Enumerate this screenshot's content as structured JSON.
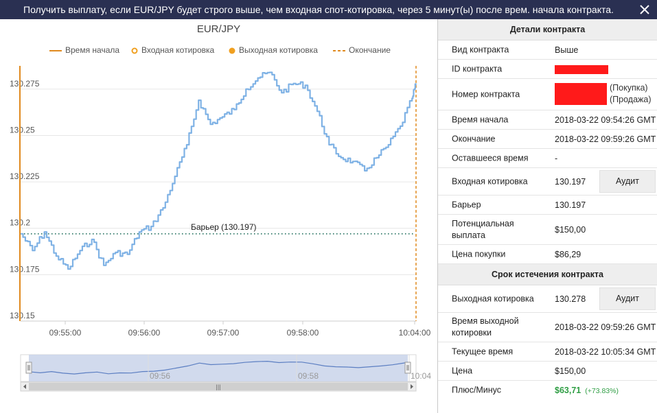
{
  "banner": {
    "text": "Получить выплату, если EUR/JPY будет строго выше, чем входная спот-котировка, через 5 минут(ы) после врем. начала контракта.",
    "close_icon": "close-icon"
  },
  "chart": {
    "title": "EUR/JPY",
    "legend": [
      "Время начала",
      "Входная котировка",
      "Выходная котировка",
      "Окончание"
    ],
    "barrier_label": "Барьер (130.197)",
    "colors": {
      "line": "#7fb2e5",
      "start": "#e08a1e",
      "end": "#e08a1e",
      "barrier": "#1f6e5c",
      "entry": "#f0a020"
    },
    "navigator_labels": [
      "09:56",
      "09:58",
      "10:04"
    ]
  },
  "chart_data": {
    "type": "line",
    "title": "EUR/JPY",
    "x_ticks": [
      "09:55:00",
      "09:56:00",
      "09:57:00",
      "09:58:00",
      "10:04:00"
    ],
    "y_ticks": [
      "130.15",
      "130.175",
      "130.2",
      "130.225",
      "130.25",
      "130.275"
    ],
    "ylim": [
      130.15,
      130.2875
    ],
    "grid": true,
    "legend_position": "top",
    "barrier": 130.197,
    "series": [
      {
        "x": [
          "09:54:26",
          "09:54:35",
          "09:54:44",
          "09:54:53",
          "09:55:02",
          "09:55:11",
          "09:55:20",
          "09:55:29",
          "09:55:38",
          "09:55:47",
          "09:55:56",
          "09:56:05",
          "09:56:14",
          "09:56:23",
          "09:56:32",
          "09:56:41",
          "09:56:50",
          "09:56:59",
          "09:57:08",
          "09:57:17",
          "09:57:26",
          "09:57:35",
          "09:57:44",
          "09:57:53",
          "09:58:02",
          "09:58:11",
          "09:58:20",
          "09:58:29",
          "09:58:38",
          "09:58:47",
          "09:58:56",
          "09:59:05",
          "09:59:14",
          "09:59:23",
          "09:59:26"
        ],
        "values": [
          130.197,
          130.188,
          130.198,
          130.185,
          130.178,
          130.188,
          130.194,
          130.18,
          130.187,
          130.186,
          130.198,
          130.201,
          130.211,
          130.228,
          130.245,
          130.269,
          130.256,
          130.26,
          130.264,
          130.275,
          130.281,
          130.284,
          130.273,
          130.278,
          130.277,
          130.263,
          130.245,
          130.238,
          130.236,
          130.231,
          130.238,
          130.245,
          130.255,
          130.27,
          130.278
        ]
      }
    ]
  },
  "details": {
    "header": "Детали контракта",
    "rows": [
      {
        "label": "Вид контракта",
        "value": "Выше"
      },
      {
        "label": "ID контракта",
        "value": ""
      },
      {
        "label": "Номер контракта",
        "value": "(Покупка)",
        "value2": "(Продажа)"
      },
      {
        "label": "Время начала",
        "value": "2018-03-22 09:54:26 GMT"
      },
      {
        "label": "Окончание",
        "value": "2018-03-22 09:59:26 GMT"
      },
      {
        "label": "Оставшееся время",
        "value": "-"
      },
      {
        "label": "Входная котировка",
        "value": "130.197",
        "button": "Аудит"
      },
      {
        "label": "Барьер",
        "value": "130.197"
      },
      {
        "label": "Потенциальная выплата",
        "value": "$150,00"
      },
      {
        "label": "Цена покупки",
        "value": "$86,29"
      }
    ]
  },
  "expiry": {
    "header": "Срок истечения контракта",
    "rows": [
      {
        "label": "Выходная котировка",
        "value": "130.278",
        "button": "Аудит"
      },
      {
        "label": "Время выходной котировки",
        "value": "2018-03-22 09:59:26 GMT"
      },
      {
        "label": "Текущее время",
        "value": "2018-03-22 10:05:34 GMT"
      },
      {
        "label": "Цена",
        "value": "$150,00"
      },
      {
        "label": "Плюс/Минус",
        "value": "$63,71",
        "extra": "(+73.83%)"
      }
    ]
  }
}
